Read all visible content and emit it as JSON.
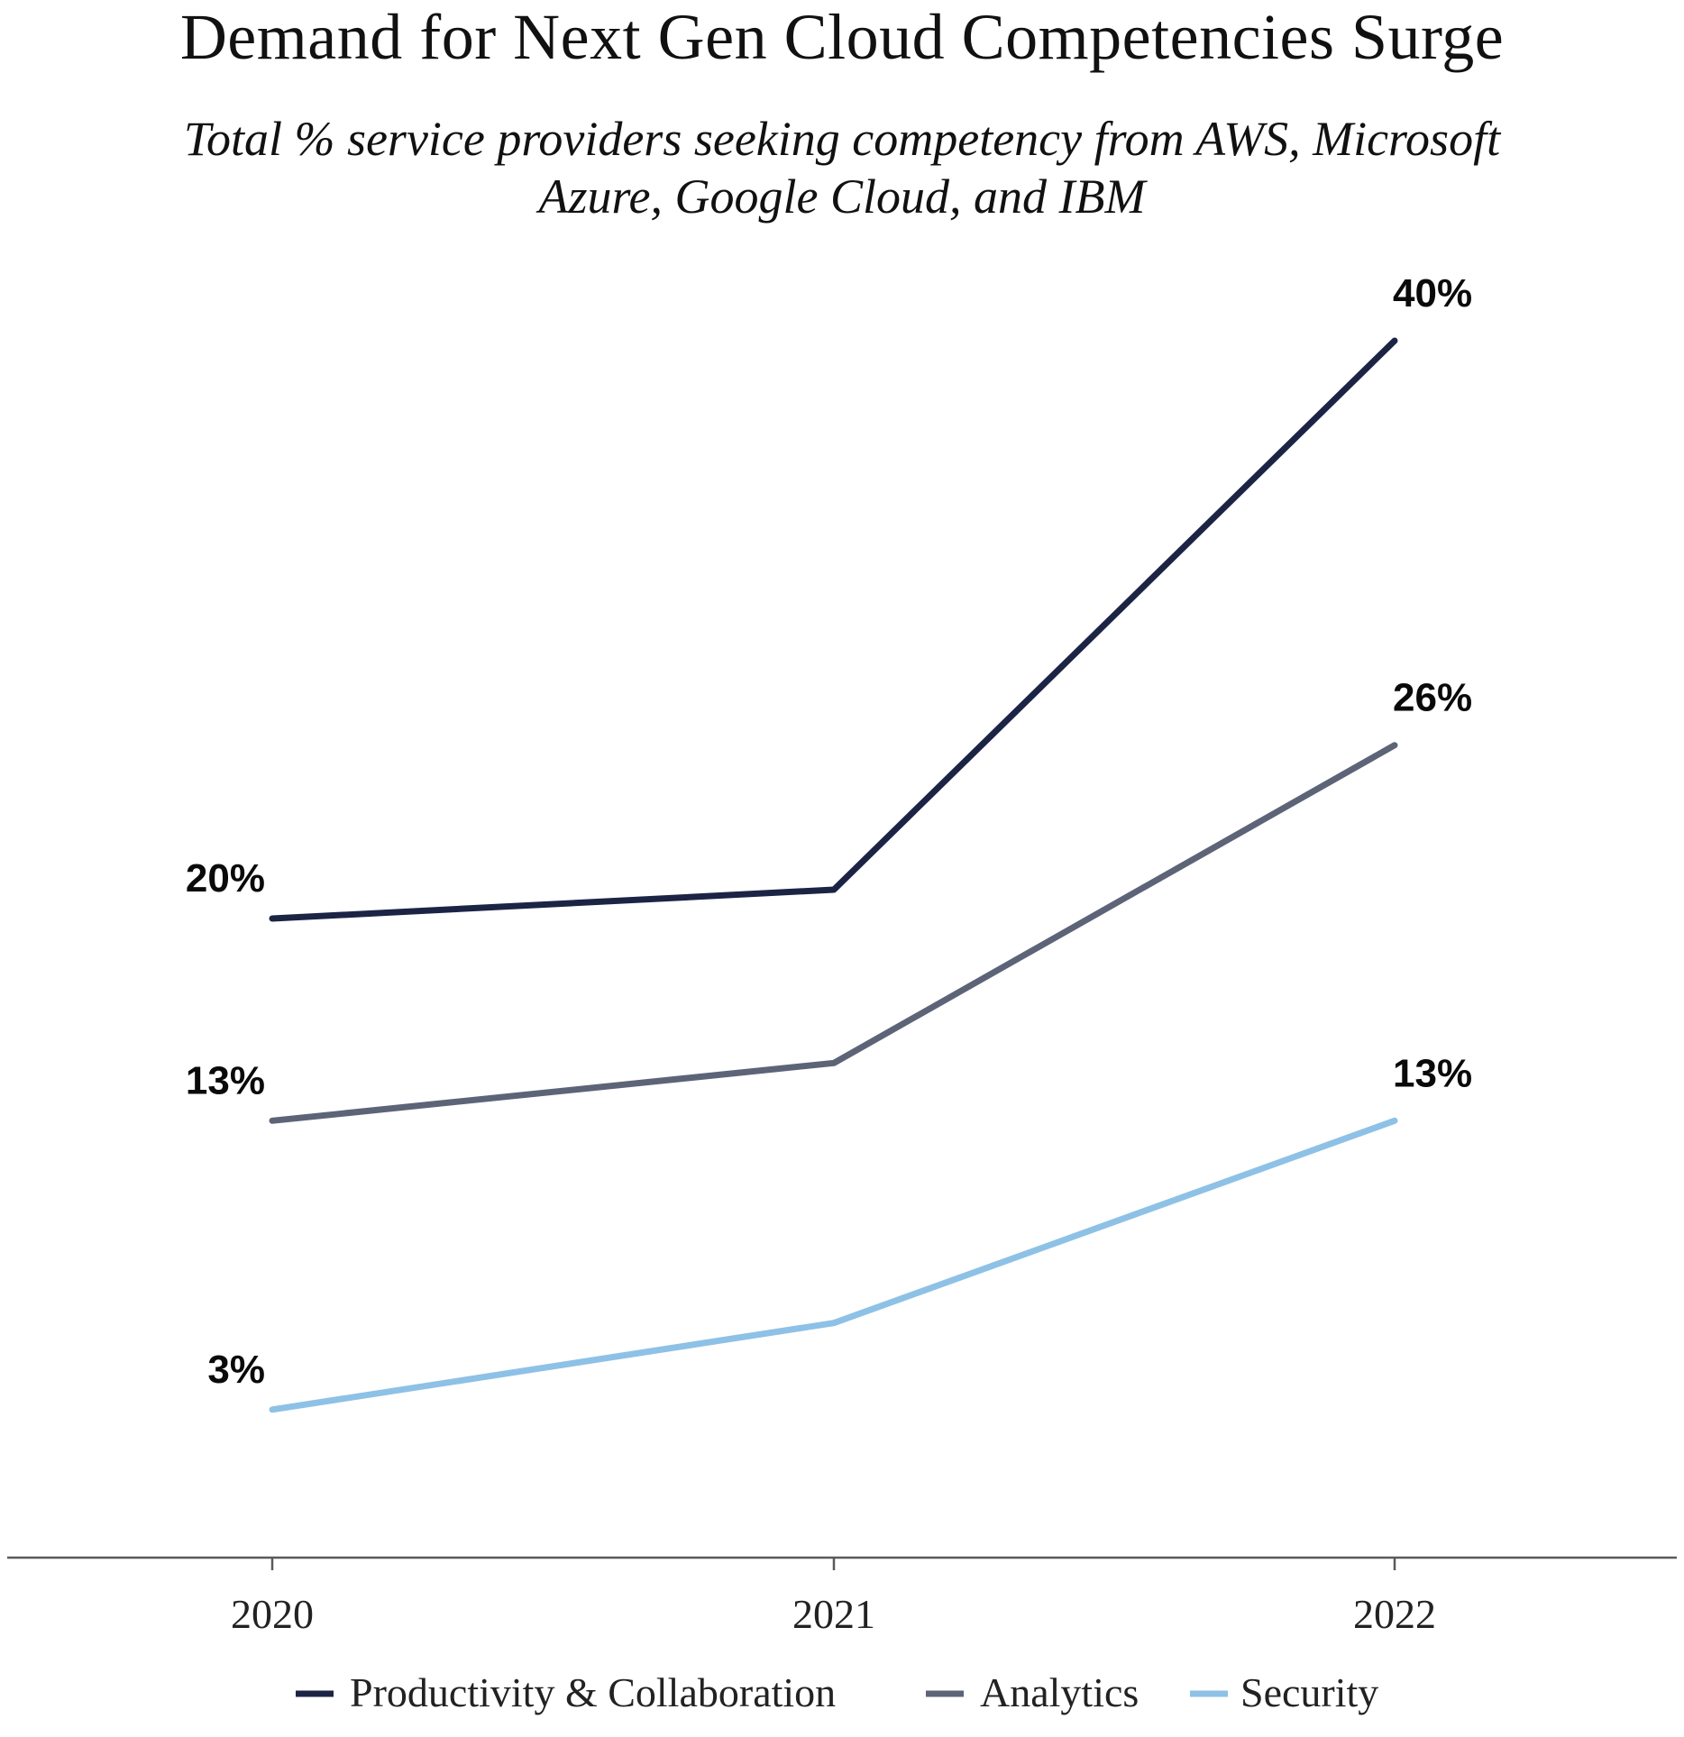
{
  "chart_data": {
    "type": "line",
    "title": "Demand for Next Gen Cloud Competencies Surge",
    "subtitle": "Total % service providers seeking competency from AWS, Microsoft Azure, Google Cloud, and IBM",
    "x": [
      "2020",
      "2021",
      "2022"
    ],
    "ylim": [
      0,
      44
    ],
    "grid": false,
    "legend_position": "bottom",
    "series": [
      {
        "name": "Productivity & Collaboration",
        "values": [
          20,
          21,
          40
        ],
        "labels": [
          "20%",
          "",
          "40%"
        ],
        "color": "#1c2445"
      },
      {
        "name": "Analytics",
        "values": [
          13,
          15,
          26
        ],
        "labels": [
          "13%",
          "",
          "26%"
        ],
        "color": "#5d6478"
      },
      {
        "name": "Security",
        "values": [
          3,
          6,
          13
        ],
        "labels": [
          "3%",
          "",
          "13%"
        ],
        "color": "#8ec1e6"
      }
    ]
  }
}
